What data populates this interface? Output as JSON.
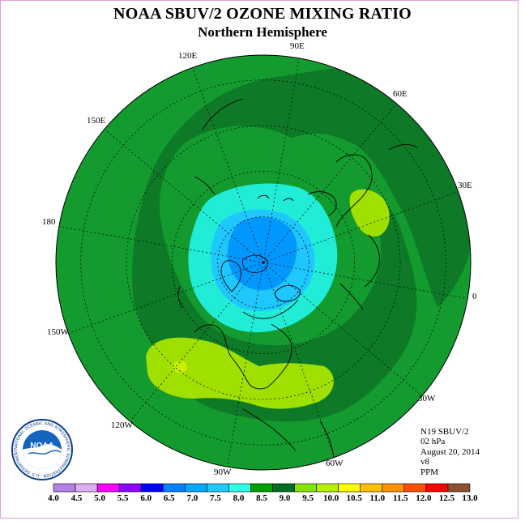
{
  "title": "NOAA SBUV/2 OZONE MIXING RATIO",
  "subtitle": "Northern Hemisphere",
  "longitude_labels": [
    "90E",
    "60E",
    "30E",
    "0",
    "30W",
    "60W",
    "90W",
    "120W",
    "150W",
    "180",
    "150E",
    "120E"
  ],
  "info": {
    "satellite": "N19 SBUV/2",
    "level": "02 hPa",
    "date": "August 20, 2014",
    "version": "v8",
    "units": "PPM"
  },
  "logo": {
    "text": "NOAA",
    "ring_text": "NATIONAL OCEANIC AND ATMOSPHERIC ADMINISTRATION · U.S. DEPARTMENT OF COMMERCE"
  },
  "colorbar": {
    "labels": [
      "4.0",
      "4.5",
      "5.0",
      "5.5",
      "6.0",
      "6.5",
      "7.0",
      "7.5",
      "8.0",
      "8.5",
      "9.0",
      "9.5",
      "10.0",
      "10.5",
      "11.0",
      "11.5",
      "12.0",
      "12.5",
      "13.0"
    ],
    "colors": [
      "#b380e6",
      "#dcb0f0",
      "#ff00ff",
      "#8c00ff",
      "#0000ff",
      "#0080ff",
      "#00a8ff",
      "#1ec8ff",
      "#2fffe6",
      "#00a000",
      "#006e1e",
      "#86e400",
      "#b4f000",
      "#ffff00",
      "#ffc000",
      "#ff9000",
      "#ff5000",
      "#ff0000",
      "#8c5032"
    ]
  },
  "map_colors": {
    "c8_0": "#20ecd8",
    "c7_5": "#1ec8ff",
    "c7_0": "#0098ff",
    "c8_5": "#139b30",
    "c9_0": "#0e7a27",
    "c9_5": "#a0e000",
    "c10_0": "#c8f000",
    "coast": "#000000"
  }
}
